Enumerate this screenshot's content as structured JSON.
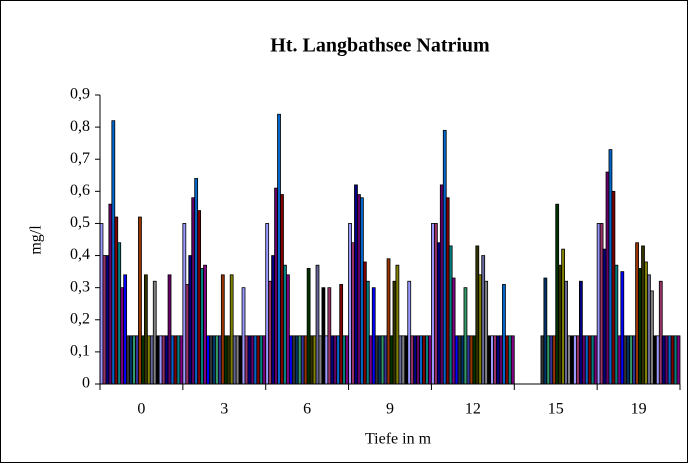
{
  "chart_data": {
    "type": "bar",
    "title": "Ht. Langbathsee  Natrium",
    "x_label": "Tiefe in m",
    "y_label": "mg/l",
    "categories": [
      "0",
      "3",
      "6",
      "9",
      "12",
      "15",
      "19"
    ],
    "ylim": [
      0,
      0.9
    ],
    "yticks": [
      {
        "value": 0,
        "label": "0"
      },
      {
        "value": 0.1,
        "label": "0,1"
      },
      {
        "value": 0.2,
        "label": "0,2"
      },
      {
        "value": 0.3,
        "label": "0,3"
      },
      {
        "value": 0.4,
        "label": "0,4"
      },
      {
        "value": 0.5,
        "label": "0,5"
      },
      {
        "value": 0.6,
        "label": "0,6"
      },
      {
        "value": 0.7,
        "label": "0,7"
      },
      {
        "value": 0.8,
        "label": "0,8"
      },
      {
        "value": 0.9,
        "label": "0,9"
      }
    ],
    "grid": false,
    "series": [
      {
        "color": "#9999ff",
        "values": [
          0.5,
          0.5,
          0.5,
          0.5,
          0.5,
          null,
          0.5
        ]
      },
      {
        "color": "#993366",
        "values": [
          0.4,
          0.31,
          0.32,
          0.44,
          0.5,
          null,
          0.5
        ]
      },
      {
        "color": "#000080",
        "values": [
          0.4,
          0.4,
          0.4,
          0.62,
          0.44,
          null,
          0.42
        ]
      },
      {
        "color": "#660066",
        "values": [
          0.56,
          0.58,
          0.61,
          0.59,
          0.62,
          null,
          0.66
        ]
      },
      {
        "color": "#0066cc",
        "values": [
          0.82,
          0.64,
          0.84,
          0.58,
          0.79,
          null,
          0.73
        ]
      },
      {
        "color": "#800000",
        "values": [
          0.52,
          0.54,
          0.59,
          0.38,
          0.58,
          null,
          0.6
        ]
      },
      {
        "color": "#008080",
        "values": [
          0.44,
          0.36,
          0.37,
          0.32,
          0.43,
          null,
          0.37
        ]
      },
      {
        "color": "#800080",
        "values": [
          0.3,
          0.37,
          0.34,
          0.15,
          0.33,
          null,
          0.15
        ]
      },
      {
        "color": "#0000ff",
        "values": [
          0.34,
          0.15,
          0.15,
          0.3,
          0.15,
          null,
          0.35
        ]
      },
      {
        "color": "#333333",
        "values": [
          0.15,
          0.15,
          0.15,
          0.15,
          0.15,
          0.15,
          0.15
        ]
      },
      {
        "color": "#003366",
        "values": [
          0.15,
          0.15,
          0.15,
          0.15,
          0.15,
          0.33,
          0.15
        ]
      },
      {
        "color": "#339966",
        "values": [
          0.15,
          0.15,
          0.15,
          0.15,
          0.3,
          0.15,
          0.15
        ]
      },
      {
        "color": "#333399",
        "values": [
          0.15,
          0.15,
          0.15,
          0.15,
          0.15,
          0.15,
          0.15
        ]
      },
      {
        "color": "#993300",
        "values": [
          0.52,
          0.34,
          0.15,
          0.39,
          0.15,
          0.15,
          0.44
        ]
      },
      {
        "color": "#003300",
        "values": [
          0.15,
          0.15,
          0.36,
          0.15,
          0.15,
          0.56,
          0.36
        ]
      },
      {
        "color": "#333300",
        "values": [
          0.34,
          0.15,
          0.15,
          0.32,
          0.43,
          0.37,
          0.43
        ]
      },
      {
        "color": "#808000",
        "values": [
          0.15,
          0.34,
          0.15,
          0.37,
          0.34,
          0.42,
          0.38
        ]
      },
      {
        "color": "#666699",
        "values": [
          0.15,
          0.15,
          0.37,
          0.15,
          0.4,
          0.32,
          0.34
        ]
      },
      {
        "color": "#808080",
        "values": [
          0.32,
          0.15,
          0.15,
          0.15,
          0.32,
          0.15,
          0.29
        ]
      },
      {
        "color": "#000000",
        "values": [
          0.15,
          0.15,
          0.3,
          0.15,
          0.15,
          0.15,
          0.15
        ]
      },
      {
        "color": "#9999ff",
        "values": [
          0.15,
          0.3,
          0.15,
          0.32,
          0.15,
          0.15,
          0.15
        ]
      },
      {
        "color": "#993366",
        "values": [
          0.15,
          0.15,
          0.3,
          0.15,
          0.15,
          0.15,
          0.32
        ]
      },
      {
        "color": "#000080",
        "values": [
          0.15,
          0.15,
          0.15,
          0.15,
          0.15,
          0.32,
          0.15
        ]
      },
      {
        "color": "#660066",
        "values": [
          0.34,
          0.15,
          0.15,
          0.15,
          0.15,
          0.15,
          0.15
        ]
      },
      {
        "color": "#0066cc",
        "values": [
          0.15,
          0.15,
          0.15,
          0.15,
          0.31,
          0.15,
          0.15
        ]
      },
      {
        "color": "#800000",
        "values": [
          0.15,
          0.15,
          0.31,
          0.15,
          0.15,
          0.15,
          0.15
        ]
      },
      {
        "color": "#008080",
        "values": [
          0.15,
          0.15,
          0.15,
          0.15,
          0.15,
          0.15,
          0.15
        ]
      },
      {
        "color": "#800080",
        "values": [
          0.15,
          0.15,
          0.15,
          0.15,
          0.15,
          0.15,
          0.15
        ]
      }
    ]
  }
}
